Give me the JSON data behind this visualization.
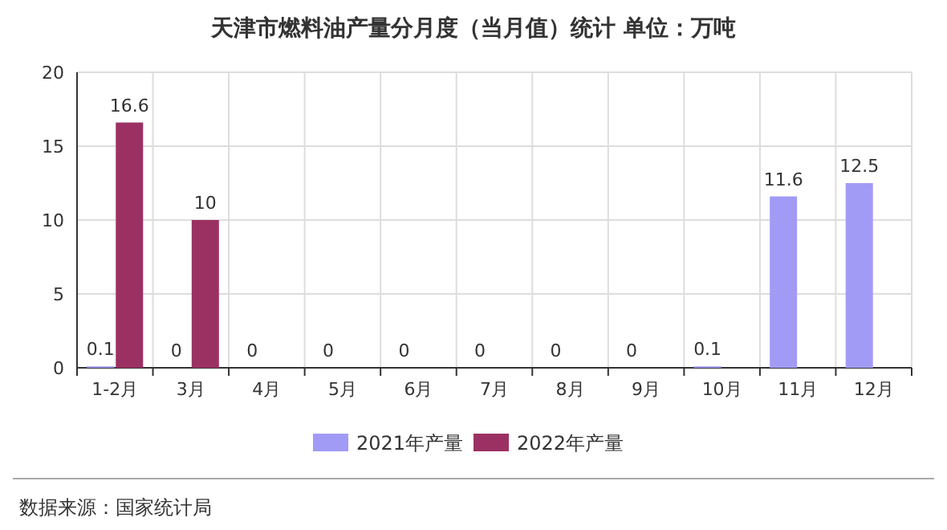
{
  "chart_data": {
    "type": "bar",
    "title": "天津市燃料油产量分月度（当月值）统计 单位：万吨",
    "categories": [
      "1-2月",
      "3月",
      "4月",
      "5月",
      "6月",
      "7月",
      "8月",
      "9月",
      "10月",
      "11月",
      "12月"
    ],
    "series": [
      {
        "name": "2021年产量",
        "color": "#a29bf6",
        "values": [
          0.1,
          0,
          0,
          0,
          0,
          0,
          0,
          0,
          0.1,
          11.6,
          12.5
        ]
      },
      {
        "name": "2022年产量",
        "color": "#9b3162",
        "values": [
          16.6,
          10,
          null,
          null,
          null,
          null,
          null,
          null,
          null,
          null,
          null
        ]
      }
    ],
    "ylim": [
      0,
      20
    ],
    "yticks": [
      0,
      5,
      10,
      15,
      20
    ],
    "grid": true,
    "legend": "bottom",
    "data_labels": true,
    "annotations": [
      "数据来源：国家统计局"
    ]
  }
}
